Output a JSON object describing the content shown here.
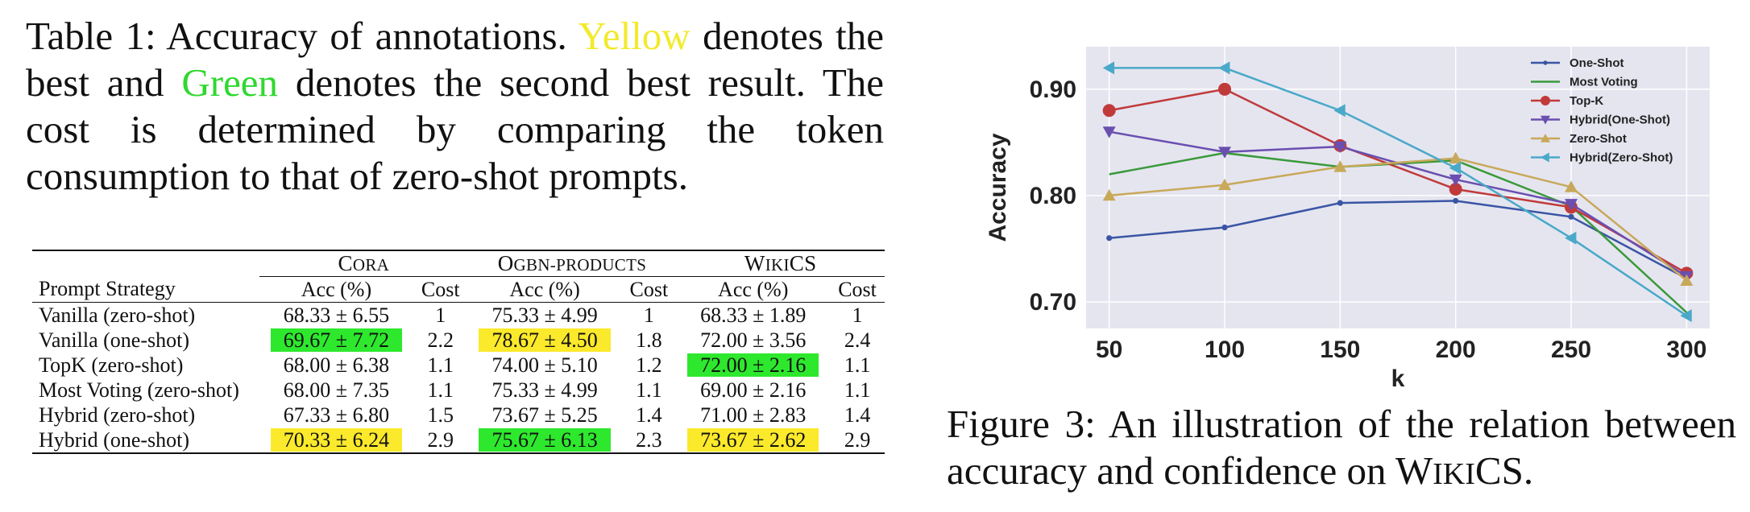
{
  "table_caption": {
    "prefix": "Table 1: Accuracy of annotations.",
    "yellow_word": "Yellow",
    "mid1": "denotes the best and",
    "green_word": "Green",
    "mid2": "denotes the second best result. The cost is determined by comparing the token consumption to that of zero-shot prompts."
  },
  "table": {
    "datasets": [
      "Cora",
      "Ogbn-products",
      "WikiCS"
    ],
    "col_strategy": "Prompt Strategy",
    "col_acc": "Acc (%)",
    "col_cost": "Cost",
    "rows": [
      {
        "strategy": "Vanilla (zero-shot)",
        "cells": [
          {
            "acc": "68.33 ± 6.55",
            "hl": "",
            "cost": "1"
          },
          {
            "acc": "75.33 ± 4.99",
            "hl": "",
            "cost": "1"
          },
          {
            "acc": "68.33 ± 1.89",
            "hl": "",
            "cost": "1"
          }
        ]
      },
      {
        "strategy": "Vanilla (one-shot)",
        "cells": [
          {
            "acc": "69.67 ± 7.72",
            "hl": "green",
            "cost": "2.2"
          },
          {
            "acc": "78.67 ± 4.50",
            "hl": "yellow",
            "cost": "1.8"
          },
          {
            "acc": "72.00 ± 3.56",
            "hl": "",
            "cost": "2.4"
          }
        ]
      },
      {
        "strategy": "TopK (zero-shot)",
        "cells": [
          {
            "acc": "68.00 ± 6.38",
            "hl": "",
            "cost": "1.1"
          },
          {
            "acc": "74.00 ± 5.10",
            "hl": "",
            "cost": "1.2"
          },
          {
            "acc": "72.00 ± 2.16",
            "hl": "green",
            "cost": "1.1"
          }
        ]
      },
      {
        "strategy": "Most Voting (zero-shot)",
        "cells": [
          {
            "acc": "68.00 ± 7.35",
            "hl": "",
            "cost": "1.1"
          },
          {
            "acc": "75.33 ± 4.99",
            "hl": "",
            "cost": "1.1"
          },
          {
            "acc": "69.00 ± 2.16",
            "hl": "",
            "cost": "1.1"
          }
        ]
      },
      {
        "strategy": "Hybrid (zero-shot)",
        "cells": [
          {
            "acc": "67.33 ± 6.80",
            "hl": "",
            "cost": "1.5"
          },
          {
            "acc": "73.67 ± 5.25",
            "hl": "",
            "cost": "1.4"
          },
          {
            "acc": "71.00 ± 2.83",
            "hl": "",
            "cost": "1.4"
          }
        ]
      },
      {
        "strategy": "Hybrid (one-shot)",
        "cells": [
          {
            "acc": "70.33 ± 6.24",
            "hl": "yellow",
            "cost": "2.9"
          },
          {
            "acc": "75.67 ± 6.13",
            "hl": "green",
            "cost": "2.3"
          },
          {
            "acc": "73.67 ± 2.62",
            "hl": "yellow",
            "cost": "2.9"
          }
        ]
      }
    ]
  },
  "chart_data": {
    "type": "line",
    "xlabel": "k",
    "ylabel": "Accuracy",
    "x": [
      50,
      100,
      150,
      200,
      250,
      300
    ],
    "xlim": [
      40,
      310
    ],
    "ylim": [
      0.675,
      0.94
    ],
    "yticks": [
      0.7,
      0.8,
      0.9
    ],
    "yticks_labels": [
      "0.70",
      "0.80",
      "0.90"
    ],
    "grid": true,
    "legend_position": "top-right",
    "background": "#e5e5f0",
    "series": [
      {
        "name": "One-Shot",
        "color": "#3a55a4",
        "marker": "dot",
        "values": [
          0.76,
          0.77,
          0.793,
          0.795,
          0.78,
          0.722
        ]
      },
      {
        "name": "Most Voting",
        "color": "#3a9a3a",
        "marker": "none",
        "values": [
          0.82,
          0.84,
          0.827,
          0.833,
          0.79,
          0.69
        ]
      },
      {
        "name": "Top-K",
        "color": "#c03a3a",
        "marker": "circle",
        "values": [
          0.88,
          0.9,
          0.847,
          0.806,
          0.789,
          0.727
        ]
      },
      {
        "name": "Hybrid(One-Shot)",
        "color": "#6a4fb0",
        "marker": "tri-down",
        "values": [
          0.86,
          0.841,
          0.846,
          0.815,
          0.792,
          0.724
        ]
      },
      {
        "name": "Zero-Shot",
        "color": "#c8a95a",
        "marker": "tri-up",
        "values": [
          0.8,
          0.81,
          0.827,
          0.835,
          0.808,
          0.72
        ]
      },
      {
        "name": "Hybrid(Zero-Shot)",
        "color": "#4aa9c8",
        "marker": "tri-left",
        "values": [
          0.92,
          0.92,
          0.88,
          0.826,
          0.76,
          0.687
        ]
      }
    ]
  },
  "figure_caption": {
    "prefix": "Figure 3: An illustration of the relation between accuracy and confidence on",
    "dataset": "WikiCS",
    "suffix": "."
  }
}
